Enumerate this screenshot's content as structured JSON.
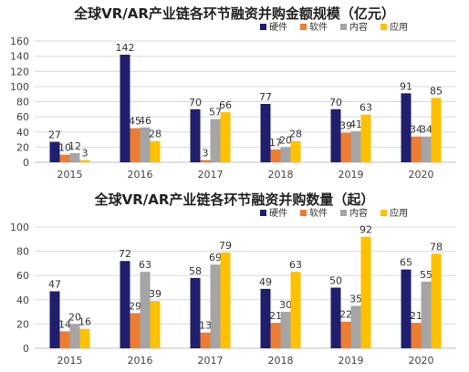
{
  "chart_data": [
    {
      "type": "bar",
      "title": "全球VR/AR产业链各环节融资并购金额规模（亿元）",
      "categories": [
        "2015",
        "2016",
        "2017",
        "2018",
        "2019",
        "2020"
      ],
      "ylim": [
        0,
        160
      ],
      "yticks": [
        0,
        20,
        40,
        60,
        80,
        100,
        120,
        140,
        160
      ],
      "grid": true,
      "legend_position": "top-right",
      "series": [
        {
          "name": "硬件",
          "color": "#1f1f6e",
          "values": [
            27,
            142,
            70,
            77,
            70,
            91
          ]
        },
        {
          "name": "软件",
          "color": "#ed7d31",
          "values": [
            10,
            45,
            3,
            17,
            39,
            34
          ]
        },
        {
          "name": "内容",
          "color": "#a5a5a5",
          "values": [
            12,
            46,
            57,
            20,
            41,
            34
          ]
        },
        {
          "name": "应用",
          "color": "#ffc000",
          "values": [
            3,
            28,
            66,
            28,
            63,
            85
          ]
        }
      ]
    },
    {
      "type": "bar",
      "title": "全球VR/AR产业链各环节融资并购数量（起）",
      "categories": [
        "2015",
        "2016",
        "2017",
        "2018",
        "2019",
        "2020"
      ],
      "ylim": [
        0,
        100
      ],
      "yticks": [
        0,
        20,
        40,
        60,
        80,
        100
      ],
      "grid": true,
      "legend_position": "top-right",
      "series": [
        {
          "name": "硬件",
          "color": "#1f1f6e",
          "values": [
            47,
            72,
            58,
            49,
            50,
            65
          ]
        },
        {
          "name": "软件",
          "color": "#ed7d31",
          "values": [
            14,
            29,
            13,
            21,
            22,
            21
          ]
        },
        {
          "name": "内容",
          "color": "#a5a5a5",
          "values": [
            20,
            63,
            69,
            30,
            35,
            55
          ]
        },
        {
          "name": "应用",
          "color": "#ffc000",
          "values": [
            16,
            39,
            79,
            63,
            92,
            78
          ]
        }
      ]
    }
  ]
}
